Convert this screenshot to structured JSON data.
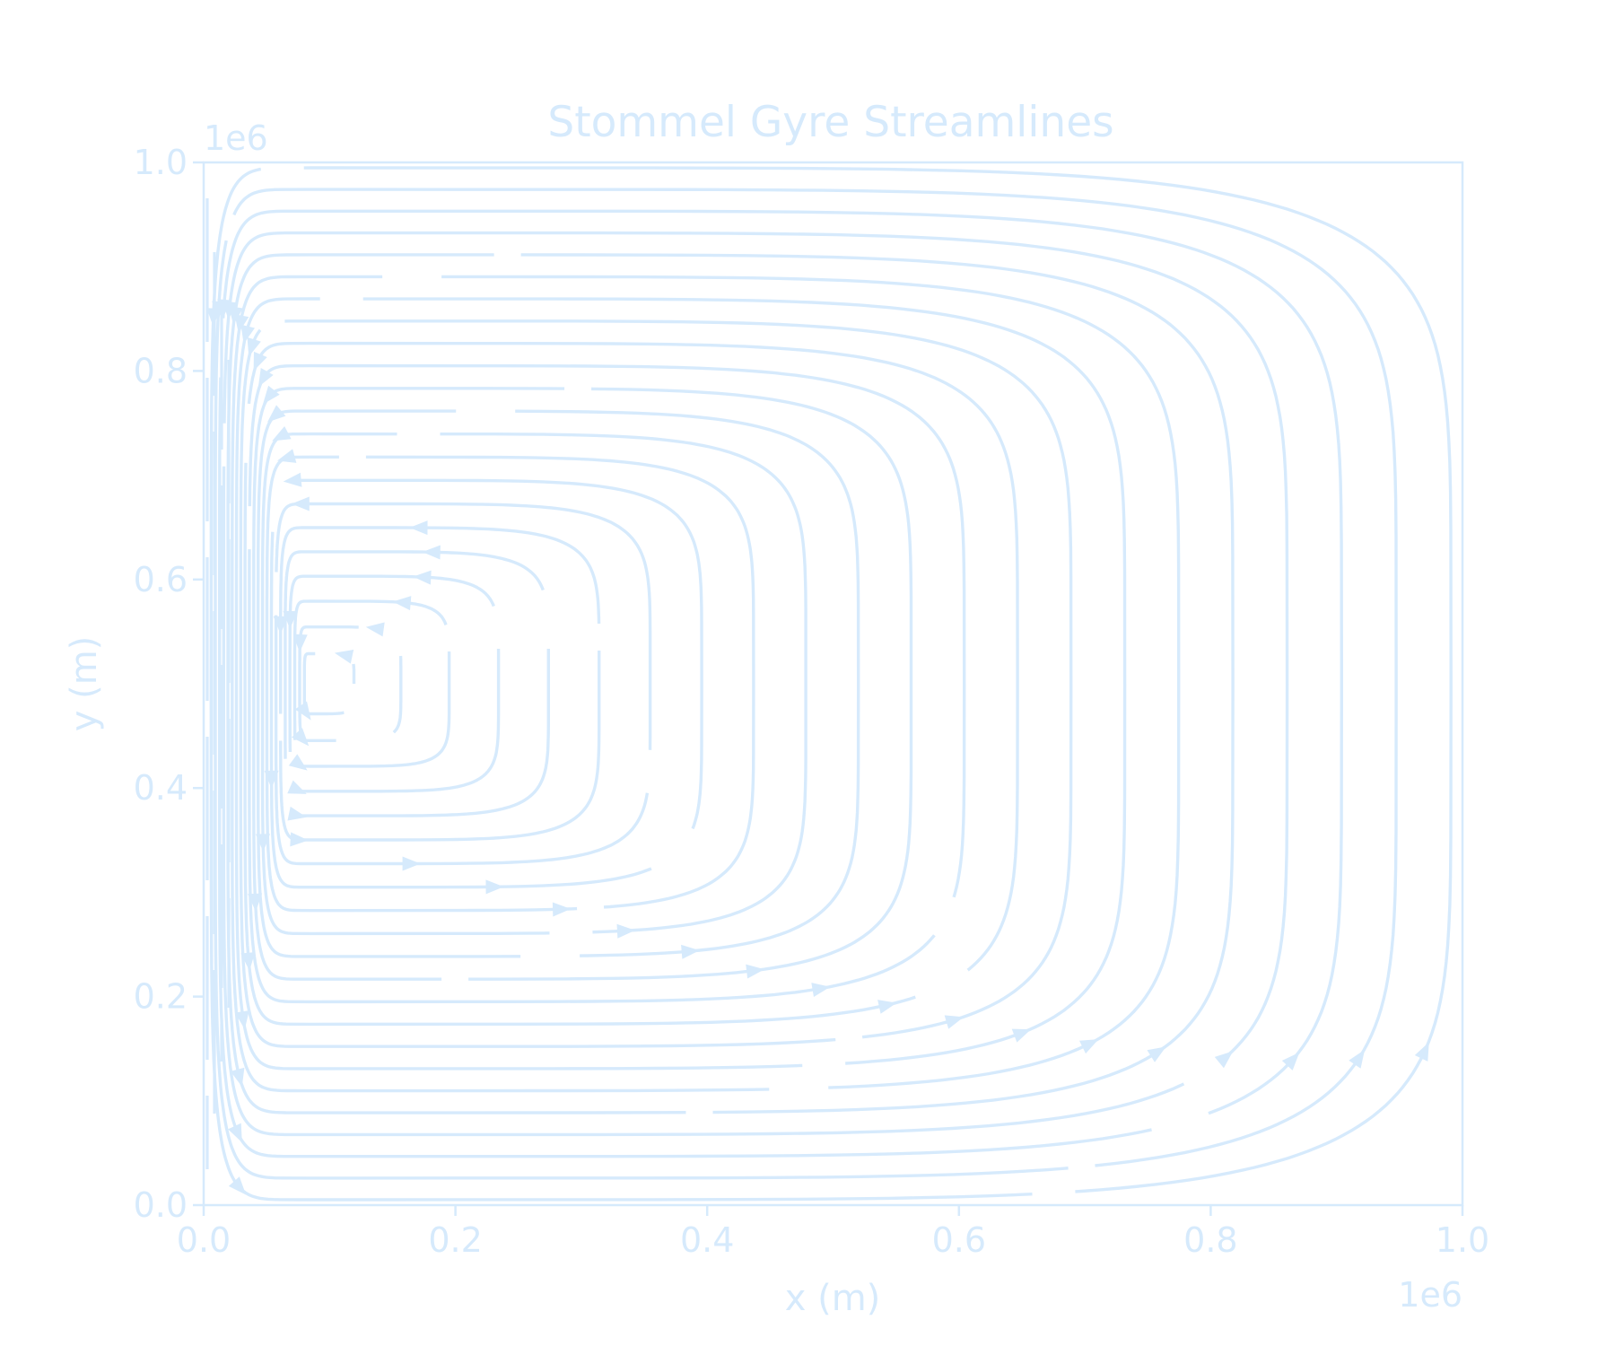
{
  "chart_data": {
    "type": "streamplot",
    "title": "Stommel Gyre Streamlines",
    "xlabel": "x (m)",
    "ylabel": "y (m)",
    "x_offset_label": "1e6",
    "y_offset_label": "1e6",
    "xlim": [
      0,
      1000000
    ],
    "ylim": [
      0,
      1000000
    ],
    "x_ticks": [
      0,
      200000,
      400000,
      600000,
      800000,
      1000000
    ],
    "x_tick_labels": [
      "0.0",
      "0.2",
      "0.4",
      "0.6",
      "0.8",
      "1.0"
    ],
    "y_ticks": [
      0,
      200000,
      400000,
      600000,
      800000,
      1000000
    ],
    "y_tick_labels": [
      "0.0",
      "0.2",
      "0.4",
      "0.6",
      "0.8",
      "1.0"
    ],
    "grid": false,
    "legend": "none",
    "circulation": "clockwise",
    "gyre_center": [
      85000,
      500000
    ],
    "x_intensification": "western",
    "streamline_count": 22,
    "color": "#d6eafc"
  }
}
